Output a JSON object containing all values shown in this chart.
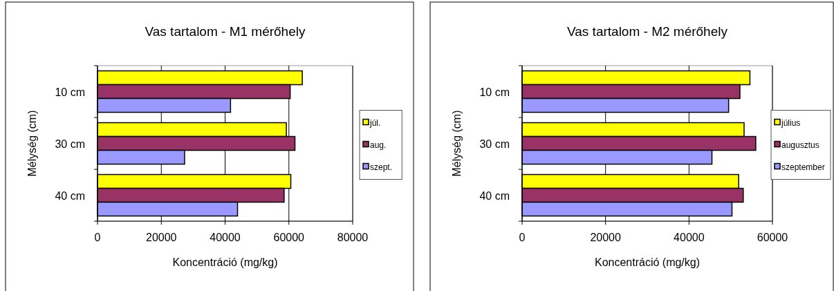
{
  "chart_data": [
    {
      "type": "bar",
      "orientation": "horizontal",
      "title": "Vas tartalom - M1 mérőhely",
      "xlabel": "Koncentráció (mg/kg)",
      "ylabel": "Mélység (cm)",
      "categories": [
        "10 cm",
        "30 cm",
        "40 cm"
      ],
      "series": [
        {
          "name": "júl.",
          "color": "#ffff00",
          "values": [
            64200,
            59200,
            60600
          ]
        },
        {
          "name": "aug.",
          "color": "#993366",
          "values": [
            60400,
            61900,
            58500
          ]
        },
        {
          "name": "szept.",
          "color": "#9999ff",
          "values": [
            41700,
            27300,
            43900
          ]
        }
      ],
      "xlim": [
        0,
        80000
      ],
      "xticks": [
        0,
        20000,
        40000,
        60000,
        80000
      ],
      "grid": "x",
      "legend": "right"
    },
    {
      "type": "bar",
      "orientation": "horizontal",
      "title": "Vas tartalom - M2 mérőhely",
      "xlabel": "Koncentráció (mg/kg)",
      "ylabel": "Mélység (cm)",
      "categories": [
        "10 cm",
        "30 cm",
        "40 cm"
      ],
      "series": [
        {
          "name": "július",
          "color": "#ffff00",
          "values": [
            54600,
            53200,
            51900
          ]
        },
        {
          "name": "augusztus",
          "color": "#993366",
          "values": [
            52200,
            56000,
            53000
          ]
        },
        {
          "name": "szeptember",
          "color": "#9999ff",
          "values": [
            49500,
            45500,
            50300
          ]
        }
      ],
      "xlim": [
        0,
        60000
      ],
      "xticks": [
        0,
        20000,
        40000,
        60000
      ],
      "grid": "x",
      "legend": "right"
    }
  ]
}
